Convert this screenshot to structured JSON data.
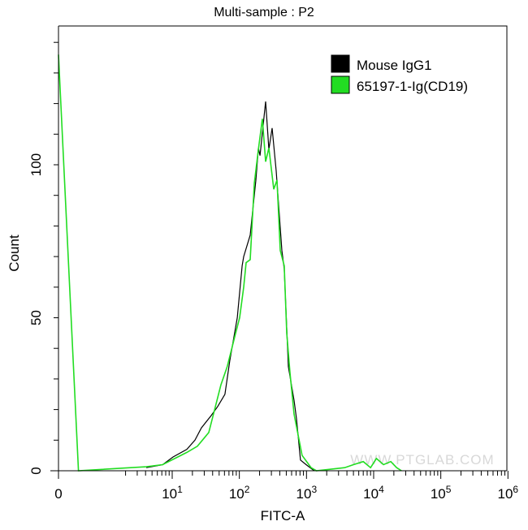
{
  "chart_data": {
    "type": "line",
    "title": "Multi-sample : P2",
    "xlabel": "FITC-A",
    "ylabel": "Count",
    "x_scale": "biexponential",
    "xlim": [
      0,
      1000000
    ],
    "ylim": [
      0,
      145
    ],
    "x_ticks": [
      {
        "value": 0,
        "base": "0",
        "exp": ""
      },
      {
        "value": 10,
        "base": "10",
        "exp": "1"
      },
      {
        "value": 100,
        "base": "10",
        "exp": "2"
      },
      {
        "value": 1000,
        "base": "10",
        "exp": "3"
      },
      {
        "value": 10000,
        "base": "10",
        "exp": "4"
      },
      {
        "value": 100000,
        "base": "10",
        "exp": "5"
      },
      {
        "value": 1000000,
        "base": "10",
        "exp": "6"
      }
    ],
    "y_ticks": [
      0,
      50,
      100
    ],
    "grid": false,
    "legend_position": "top-right",
    "watermark": "WWW.PTGLAB.COM",
    "series": [
      {
        "name": "Mouse IgG1",
        "color": "#000000",
        "x": [
          4.1,
          7.2,
          10.3,
          16.5,
          21.8,
          27.2,
          38,
          47.6,
          61,
          72,
          93,
          110,
          116,
          145,
          176,
          192,
          203,
          246,
          275,
          308,
          354,
          430,
          466,
          537,
          653,
          710,
          814,
          989,
          1307
        ],
        "y": [
          1,
          2,
          4.5,
          7,
          10,
          14,
          18,
          21,
          25,
          36,
          50,
          67,
          70,
          77,
          95,
          105.5,
          103,
          120.7,
          105,
          112,
          98,
          72,
          66,
          34,
          23,
          17,
          3.5,
          2,
          0
        ]
      },
      {
        "name": "65197-1-Ig(CD19)",
        "color": "#22dd22",
        "x": [
          0,
          0.3,
          4.1,
          7.2,
          16.5,
          23.7,
          35,
          44,
          53,
          66,
          88,
          101,
          116,
          126,
          145,
          167,
          192,
          220,
          246,
          275,
          325,
          364,
          406,
          466,
          508,
          568,
          653,
          861,
          1170,
          1400,
          3700,
          5000,
          7000,
          9000,
          11000,
          14000,
          18000,
          22000,
          26000
        ],
        "y": [
          136,
          0,
          1.3,
          2,
          6,
          8,
          12.5,
          21,
          28,
          34,
          45,
          50,
          60,
          68,
          69,
          94,
          105,
          115,
          101,
          105.5,
          92,
          95,
          72,
          67,
          45,
          32,
          18.5,
          5,
          1,
          0,
          1,
          2,
          3,
          1,
          4,
          2,
          3,
          1,
          0
        ]
      }
    ]
  }
}
